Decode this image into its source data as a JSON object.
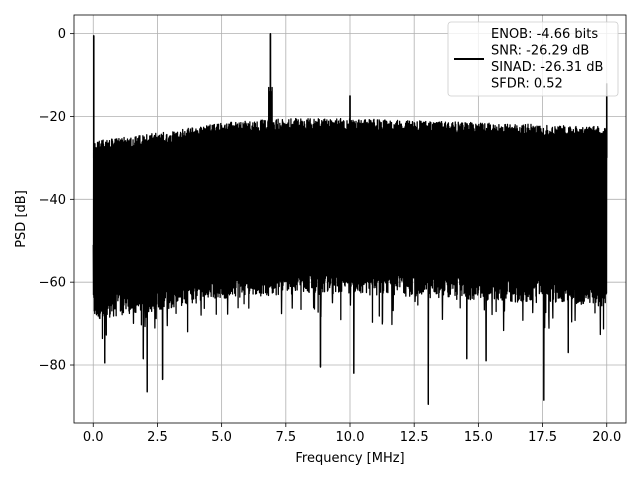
{
  "chart_data": {
    "type": "line",
    "title": "",
    "xlabel": "Frequency [MHz]",
    "ylabel": "PSD [dB]",
    "xlim": [
      -0.75,
      20.75
    ],
    "ylim": [
      -94,
      4.5
    ],
    "xticks": [
      0.0,
      2.5,
      5.0,
      7.5,
      10.0,
      12.5,
      15.0,
      17.5,
      20.0
    ],
    "xtick_labels": [
      "0.0",
      "2.5",
      "5.0",
      "7.5",
      "10.0",
      "12.5",
      "15.0",
      "17.5",
      "20.0"
    ],
    "yticks": [
      0,
      -20,
      -40,
      -60,
      -80
    ],
    "ytick_labels": [
      "0",
      "−20",
      "−40",
      "−60",
      "−80"
    ],
    "grid": true,
    "legend_position": "top-right",
    "series": [
      {
        "color": "#000000",
        "legend_lines": [
          "ENOB: -4.66 bits",
          "SNR: -26.29 dB",
          "SINAD: -26.31 dB",
          "SFDR: 0.52"
        ],
        "noise_ceiling": [
          [
            0.0,
            -27
          ],
          [
            2.5,
            -25
          ],
          [
            5.0,
            -22.5
          ],
          [
            7.5,
            -21.5
          ],
          [
            10.0,
            -21.5
          ],
          [
            12.5,
            -22
          ],
          [
            15.0,
            -22.5
          ],
          [
            17.5,
            -23
          ],
          [
            20.0,
            -23.5
          ]
        ],
        "noise_floor": [
          [
            0.0,
            -66
          ],
          [
            2.5,
            -64
          ],
          [
            5.0,
            -61
          ],
          [
            7.5,
            -60
          ],
          [
            10.0,
            -60
          ],
          [
            12.5,
            -60.5
          ],
          [
            15.0,
            -61.5
          ],
          [
            17.5,
            -62
          ],
          [
            20.0,
            -63
          ]
        ],
        "spikes": [
          {
            "x": 0.02,
            "y": -0.5
          },
          {
            "x": 6.9,
            "y": 0.0
          },
          {
            "x": 10.0,
            "y": -15
          },
          {
            "x": 20.0,
            "y": -12
          }
        ],
        "dips": [
          {
            "x": 0.45,
            "y": -79.5
          },
          {
            "x": 1.95,
            "y": -78.5
          },
          {
            "x": 2.1,
            "y": -86.5
          },
          {
            "x": 2.7,
            "y": -83.5
          },
          {
            "x": 8.85,
            "y": -80.5
          },
          {
            "x": 10.15,
            "y": -82
          },
          {
            "x": 13.05,
            "y": -89.5
          },
          {
            "x": 14.55,
            "y": -78.5
          },
          {
            "x": 15.3,
            "y": -79
          },
          {
            "x": 17.55,
            "y": -88.5
          },
          {
            "x": 18.5,
            "y": -77
          }
        ]
      }
    ]
  }
}
